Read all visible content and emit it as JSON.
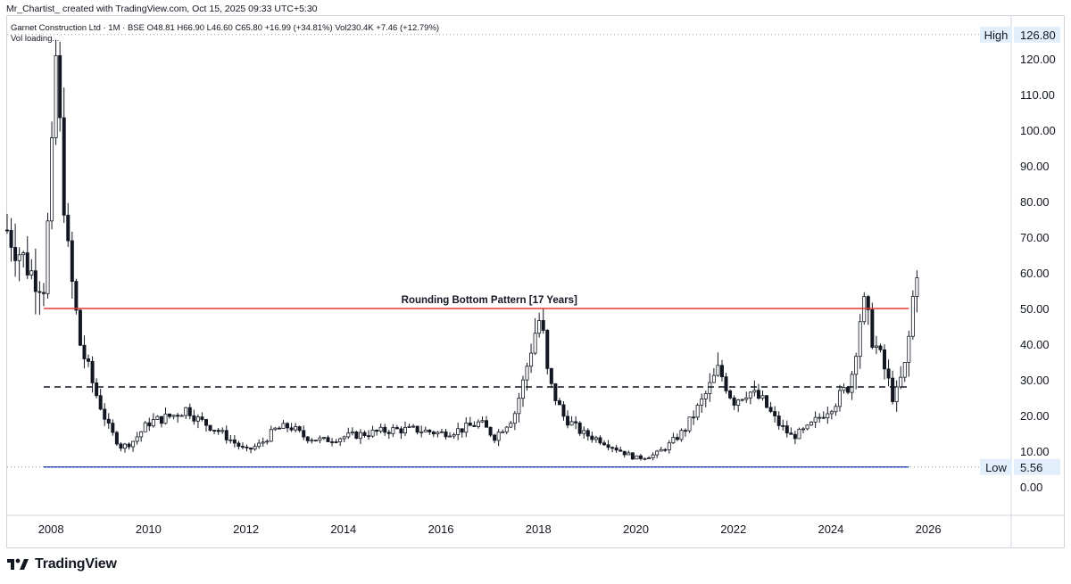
{
  "header": {
    "attribution": "Mr_Chartist_ created with TradingView.com, Oct 15, 2025 09:33 UTC+5:30"
  },
  "legend": {
    "symbol_line": "Garnet Construction Ltd · 1M · BSE  O48.81  H66.90  L46.60  C65.80  +16.99 (+34.81%)  Vol230.4K  +7.46 (+12.79%)",
    "volume_line": "Vol loading..."
  },
  "footer": {
    "brand": "TradingView"
  },
  "colors": {
    "resistance": "#e53935",
    "support": "#1e3fb8",
    "dashed": "#131722",
    "candle": "#131722",
    "label_bg": "#e3eefb"
  },
  "chart_data": {
    "type": "candlestick",
    "currency": "INR",
    "ylim": [
      -8,
      132
    ],
    "xlim": [
      2007.1,
      2027.7
    ],
    "y_ticks": [
      "0.00",
      "10.00",
      "20.00",
      "30.00",
      "40.00",
      "50.00",
      "60.00",
      "70.00",
      "80.00",
      "90.00",
      "100.00",
      "110.00",
      "120.00"
    ],
    "x_ticks": [
      "2008",
      "2010",
      "2012",
      "2014",
      "2016",
      "2018",
      "2020",
      "2022",
      "2024",
      "2026"
    ],
    "high": {
      "label": "High",
      "value": "126.80"
    },
    "low": {
      "label": "Low",
      "value": "5.56"
    },
    "annotation": {
      "text": "Rounding Bottom Pattern [17 Years]",
      "x": 2018.0,
      "y": 50
    },
    "levels": [
      {
        "name": "resistance",
        "y": 50,
        "x_start": 2007.85,
        "x_end": 2025.6,
        "style": "solid",
        "color": "#e53935"
      },
      {
        "name": "support",
        "y": 5.56,
        "x_start": 2007.85,
        "x_end": 2025.6,
        "style": "solid",
        "color": "#1e3fb8"
      },
      {
        "name": "breakout-zone",
        "y": 28,
        "x_start": 2007.85,
        "x_end": 2025.6,
        "style": "dashed",
        "color": "#131722"
      }
    ],
    "path_points": [
      [
        2007.1,
        72
      ],
      [
        2007.6,
        60
      ],
      [
        2007.85,
        57
      ],
      [
        2008.0,
        85
      ],
      [
        2008.1,
        120
      ],
      [
        2008.2,
        95
      ],
      [
        2008.35,
        65
      ],
      [
        2008.6,
        40
      ],
      [
        2008.9,
        27
      ],
      [
        2009.2,
        16
      ],
      [
        2009.45,
        11
      ],
      [
        2009.7,
        13
      ],
      [
        2010.0,
        18
      ],
      [
        2010.5,
        20
      ],
      [
        2010.8,
        22
      ],
      [
        2011.0,
        19
      ],
      [
        2011.4,
        16
      ],
      [
        2011.8,
        12
      ],
      [
        2012.0,
        10
      ],
      [
        2012.3,
        12
      ],
      [
        2012.6,
        16
      ],
      [
        2012.9,
        17
      ],
      [
        2013.2,
        14
      ],
      [
        2013.6,
        13
      ],
      [
        2014.0,
        14
      ],
      [
        2014.5,
        15
      ],
      [
        2015.0,
        16
      ],
      [
        2015.5,
        16
      ],
      [
        2016.0,
        15
      ],
      [
        2016.4,
        16
      ],
      [
        2016.8,
        18
      ],
      [
        2017.1,
        14
      ],
      [
        2017.5,
        20
      ],
      [
        2017.7,
        30
      ],
      [
        2017.9,
        42
      ],
      [
        2018.05,
        48
      ],
      [
        2018.2,
        30
      ],
      [
        2018.5,
        20
      ],
      [
        2018.9,
        15
      ],
      [
        2019.3,
        13
      ],
      [
        2019.7,
        10
      ],
      [
        2020.0,
        8
      ],
      [
        2020.4,
        9
      ],
      [
        2020.7,
        12
      ],
      [
        2021.0,
        16
      ],
      [
        2021.4,
        25
      ],
      [
        2021.7,
        33
      ],
      [
        2022.0,
        24
      ],
      [
        2022.3,
        27
      ],
      [
        2022.6,
        24
      ],
      [
        2022.9,
        18
      ],
      [
        2023.2,
        14
      ],
      [
        2023.5,
        16
      ],
      [
        2023.8,
        20
      ],
      [
        2024.1,
        24
      ],
      [
        2024.4,
        29
      ],
      [
        2024.65,
        52
      ],
      [
        2024.85,
        42
      ],
      [
        2025.1,
        33
      ],
      [
        2025.3,
        24
      ],
      [
        2025.55,
        35
      ],
      [
        2025.7,
        55
      ],
      [
        2025.8,
        65.8
      ]
    ]
  }
}
